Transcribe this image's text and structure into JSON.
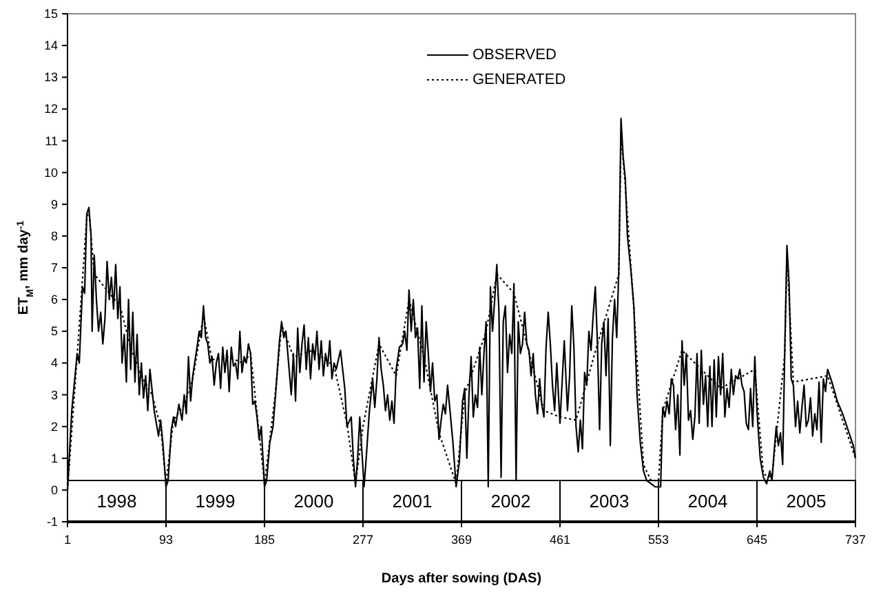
{
  "chart_data": {
    "type": "line",
    "xlabel": "Days after sowing (DAS)",
    "ylabel": "ET$_{M}$, mm day$^{-1}$",
    "xlim": [
      1,
      737
    ],
    "xticks": [
      1,
      93,
      185,
      277,
      369,
      461,
      553,
      645,
      737
    ],
    "ylim": [
      -1,
      15
    ],
    "yticks": [
      -1,
      0,
      1,
      2,
      3,
      4,
      5,
      6,
      7,
      8,
      9,
      10,
      11,
      12,
      13,
      14,
      15
    ],
    "grid": false,
    "legend": "top",
    "marker": "none",
    "series": [
      {
        "name": "OBSERVED",
        "color": "#000000",
        "line_style": "solid",
        "x": [
          1,
          5,
          10,
          12,
          15,
          17,
          19,
          21,
          23,
          24,
          26,
          28,
          30,
          32,
          34,
          36,
          38,
          40,
          42,
          44,
          46,
          48,
          50,
          52,
          54,
          56,
          58,
          60,
          62,
          64,
          66,
          68,
          70,
          72,
          74,
          76,
          78,
          82,
          86,
          88,
          90,
          93,
          95,
          98,
          100,
          102,
          105,
          108,
          110,
          112,
          114,
          116,
          118,
          122,
          124,
          126,
          128,
          130,
          132,
          134,
          136,
          138,
          140,
          142,
          144,
          146,
          148,
          150,
          152,
          154,
          156,
          158,
          160,
          162,
          164,
          166,
          168,
          170,
          172,
          174,
          176,
          178,
          180,
          182,
          185,
          187,
          190,
          193,
          196,
          199,
          201,
          203,
          205,
          207,
          210,
          212,
          214,
          216,
          218,
          220,
          222,
          224,
          226,
          228,
          230,
          232,
          234,
          236,
          238,
          240,
          242,
          244,
          246,
          248,
          250,
          252,
          256,
          260,
          262,
          266,
          268,
          270,
          272,
          274,
          278,
          280,
          283,
          286,
          288,
          290,
          292,
          294,
          296,
          298,
          300,
          302,
          304,
          306,
          308,
          311,
          314,
          316,
          318,
          320,
          322,
          324,
          326,
          328,
          330,
          332,
          334,
          336,
          338,
          340,
          342,
          344,
          346,
          348,
          350,
          352,
          354,
          356,
          358,
          361,
          364,
          367,
          370,
          372,
          374,
          376,
          378,
          380,
          382,
          384,
          386,
          388,
          390,
          392,
          394,
          396,
          398,
          400,
          402,
          404,
          406,
          408,
          410,
          412,
          414,
          416,
          418,
          420,
          422,
          424,
          426,
          428,
          430,
          432,
          434,
          436,
          438,
          440,
          442,
          444,
          446,
          448,
          450,
          452,
          454,
          456,
          458,
          461,
          465,
          468,
          470,
          472,
          474,
          476,
          478,
          480,
          482,
          484,
          486,
          488,
          490,
          492,
          494,
          496,
          498,
          500,
          502,
          504,
          506,
          508,
          510,
          512,
          514,
          516,
          518,
          520,
          522,
          524,
          527,
          530,
          533,
          536,
          539,
          542,
          546,
          550,
          553,
          555,
          557,
          559,
          561,
          563,
          565,
          567,
          569,
          571,
          573,
          575,
          577,
          579,
          581,
          583,
          585,
          587,
          589,
          591,
          593,
          595,
          597,
          599,
          601,
          603,
          605,
          607,
          609,
          611,
          613,
          615,
          617,
          619,
          621,
          623,
          625,
          627,
          629,
          631,
          633,
          635,
          637,
          639,
          641,
          643,
          645,
          648,
          651,
          654,
          657,
          659,
          661,
          663,
          665,
          667,
          669,
          671,
          673,
          675,
          677,
          679,
          681,
          683,
          685,
          687,
          689,
          691,
          693,
          695,
          697,
          699,
          701,
          703,
          705,
          707,
          709,
          711,
          715,
          720,
          725,
          730,
          735,
          737
        ],
        "values": [
          0,
          2.5,
          4.3,
          4.0,
          6.4,
          6.2,
          8.7,
          8.9,
          8.0,
          5.0,
          7.4,
          6.0,
          5.0,
          5.6,
          4.6,
          5.4,
          7.2,
          6.0,
          6.7,
          5.7,
          7.1,
          5.4,
          6.4,
          4.0,
          4.9,
          3.4,
          6.0,
          3.8,
          5.6,
          3.4,
          4.9,
          3.0,
          4.0,
          2.9,
          3.6,
          2.5,
          3.8,
          2.5,
          1.7,
          2.2,
          1.5,
          0.1,
          0.3,
          1.9,
          2.3,
          2.0,
          2.7,
          2.2,
          3.0,
          2.4,
          4.2,
          2.8,
          3.6,
          4.5,
          5.0,
          4.8,
          5.8,
          4.8,
          4.6,
          4.0,
          4.2,
          3.3,
          4.0,
          4.3,
          3.2,
          4.5,
          3.7,
          4.4,
          3.1,
          4.5,
          3.9,
          4.0,
          3.5,
          5.0,
          3.7,
          4.2,
          4.0,
          4.6,
          4.3,
          2.7,
          2.8,
          2.3,
          1.6,
          2.0,
          0.1,
          0.3,
          1.5,
          2.0,
          3.3,
          4.7,
          5.3,
          4.8,
          5.0,
          4.2,
          3.0,
          4.3,
          2.8,
          5.1,
          3.7,
          4.6,
          5.2,
          3.8,
          4.8,
          3.5,
          4.6,
          4.1,
          5.0,
          3.8,
          4.7,
          3.6,
          4.3,
          3.9,
          4.7,
          3.5,
          4.0,
          3.8,
          4.4,
          3.2,
          2.0,
          2.3,
          1.0,
          0.1,
          1.0,
          2.3,
          0.1,
          1.0,
          2.5,
          3.5,
          2.6,
          3.5,
          4.8,
          3.8,
          3.3,
          2.5,
          3.0,
          2.2,
          2.8,
          2.1,
          3.8,
          4.5,
          4.6,
          5.0,
          4.4,
          6.3,
          5.0,
          6.0,
          4.8,
          5.1,
          3.2,
          5.8,
          3.4,
          5.3,
          4.3,
          3.1,
          4.0,
          2.8,
          3.0,
          1.6,
          2.2,
          2.7,
          2.4,
          3.3,
          2.6,
          1.5,
          0.1,
          0.9,
          2.8,
          3.2,
          1.0,
          3.0,
          4.2,
          2.3,
          3.0,
          2.6,
          4.5,
          3.0,
          4.3,
          5.3,
          0.1,
          6.4,
          5.0,
          6.0,
          7.1,
          5.6,
          0.4,
          5.3,
          5.8,
          3.7,
          4.9,
          4.3,
          6.5,
          0.3,
          5.3,
          4.3,
          4.6,
          5.6,
          4.6,
          4.4,
          3.6,
          4.3,
          3.0,
          2.4,
          3.5,
          2.7,
          2.3,
          4.5,
          5.6,
          4.6,
          3.3,
          2.5,
          4.0,
          2.1,
          4.7,
          2.5,
          3.6,
          5.8,
          4.5,
          2.0,
          1.2,
          2.2,
          1.3,
          3.7,
          3.3,
          5.0,
          4.4,
          5.5,
          6.4,
          4.6,
          1.9,
          4.6,
          5.3,
          3.6,
          5.4,
          1.4,
          4.8,
          6.0,
          4.8,
          7.0,
          11.7,
          10.5,
          9.8,
          8.0,
          7.0,
          5.8,
          3.0,
          1.5,
          0.6,
          0.3,
          0.2,
          0.1,
          0.1,
          0.1,
          2.6,
          2.3,
          2.8,
          2.4,
          3.5,
          3.3,
          1.9,
          3.0,
          1.1,
          4.7,
          3.3,
          4.3,
          2.2,
          2.5,
          1.6,
          2.3,
          4.3,
          2.1,
          4.4,
          2.7,
          3.6,
          2.0,
          3.9,
          2.0,
          4.1,
          2.3,
          4.2,
          3.0,
          4.3,
          2.3,
          3.2,
          2.6,
          3.8,
          3.0,
          3.6,
          3.5,
          3.8,
          3.3,
          3.1,
          2.1,
          1.9,
          3.2,
          2.0,
          4.2,
          2.5,
          1.0,
          0.4,
          0.2,
          0.6,
          0.3,
          1.2,
          2.0,
          1.4,
          1.8,
          0.8,
          4.5,
          7.7,
          6.5,
          3.5,
          3.3,
          2.0,
          2.8,
          1.8,
          2.6,
          3.3,
          2.0,
          2.2,
          2.9,
          1.7,
          2.4,
          1.9,
          3.4,
          1.5,
          3.5,
          3.1,
          3.8,
          3.4,
          2.8,
          2.4,
          1.9,
          1.4,
          1.0
        ]
      },
      {
        "name": "GENERATED",
        "color": "#000000",
        "line_style": "dotted",
        "x": [
          1,
          10,
          19,
          21,
          26,
          40,
          50,
          60,
          70,
          80,
          88,
          93,
          100,
          110,
          118,
          128,
          136,
          150,
          165,
          172,
          180,
          185,
          195,
          201,
          212,
          230,
          250,
          262,
          270,
          277,
          292,
          308,
          320,
          334,
          348,
          364,
          372,
          392,
          402,
          418,
          430,
          446,
          461,
          476,
          496,
          516,
          518,
          522,
          530,
          539,
          546,
          553,
          557,
          575,
          611,
          643,
          651,
          659,
          671,
          673,
          679,
          711,
          737
        ],
        "values": [
          0,
          4.2,
          8.6,
          8.8,
          6.8,
          6.2,
          5.8,
          4.5,
          3.6,
          3.0,
          2.0,
          0.2,
          2.2,
          2.7,
          3.5,
          5.5,
          4.1,
          4.2,
          4.0,
          4.3,
          1.8,
          0.2,
          3.0,
          5.2,
          4.2,
          4.4,
          3.9,
          2.1,
          0.2,
          2.0,
          4.6,
          3.6,
          6.0,
          4.2,
          1.8,
          0.2,
          3.0,
          5.0,
          6.8,
          6.2,
          4.6,
          2.5,
          2.3,
          2.2,
          4.6,
          6.8,
          11.2,
          9.6,
          5.7,
          0.8,
          0.3,
          0.3,
          2.5,
          4.4,
          3.2,
          3.8,
          0.5,
          0.4,
          4.3,
          7.4,
          3.4,
          3.6,
          1.0
        ]
      }
    ],
    "bands": [
      {
        "axis": "x",
        "from": 1,
        "to": 93,
        "label": "1998"
      },
      {
        "axis": "x",
        "from": 93,
        "to": 185,
        "label": "1999"
      },
      {
        "axis": "x",
        "from": 185,
        "to": 277,
        "label": "2000"
      },
      {
        "axis": "x",
        "from": 277,
        "to": 369,
        "label": "2001"
      },
      {
        "axis": "x",
        "from": 369,
        "to": 461,
        "label": "2002"
      },
      {
        "axis": "x",
        "from": 461,
        "to": 553,
        "label": "2003"
      },
      {
        "axis": "x",
        "from": 553,
        "to": 645,
        "label": "2004"
      },
      {
        "axis": "x",
        "from": 645,
        "to": 737,
        "label": "2005"
      }
    ]
  }
}
